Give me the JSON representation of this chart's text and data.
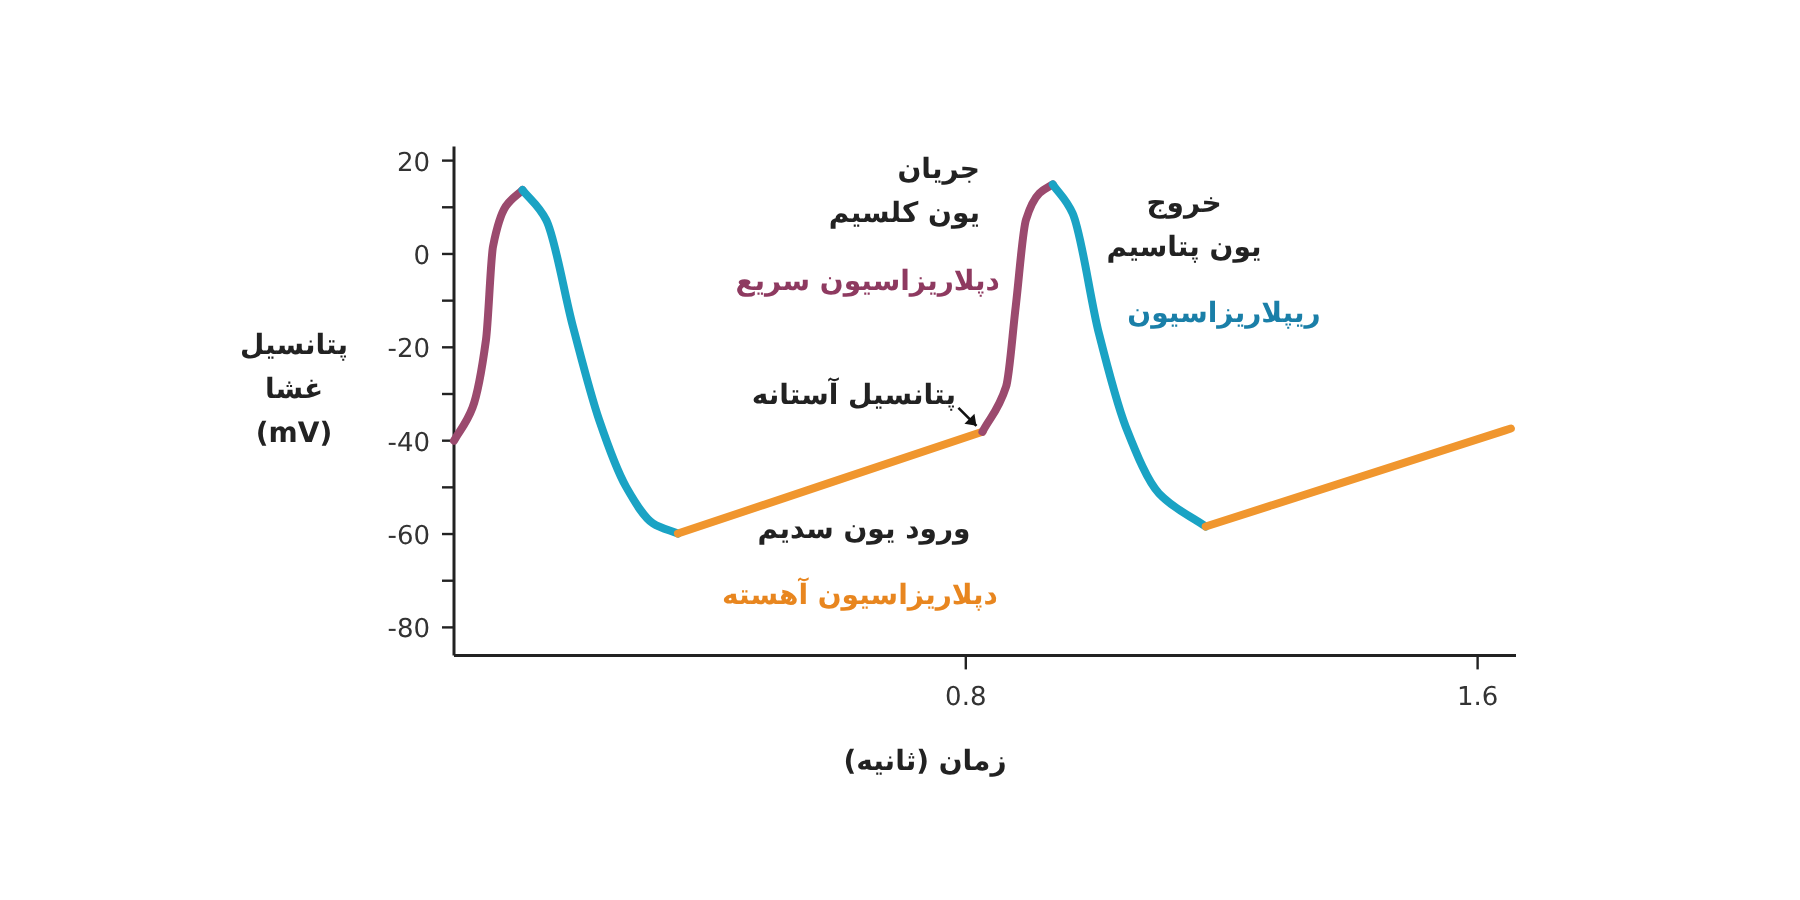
{
  "chart_data": {
    "type": "line",
    "xlabel": "زمان (ثانیه)",
    "ylabel": "پتانسیل\nغشا\n(mV)",
    "xlim": [
      0,
      1.66
    ],
    "ylim": [
      -86,
      23
    ],
    "xticks": [
      0.8,
      1.6
    ],
    "yticks": [
      20,
      {
        "value": 10,
        "label": null
      },
      0,
      {
        "value": -10,
        "label": null
      },
      -20,
      {
        "value": -30,
        "label": null
      },
      -40,
      {
        "value": -50,
        "label": null
      },
      -60,
      {
        "value": -70,
        "label": null
      },
      -80
    ],
    "grid": false,
    "marker": "none",
    "line_style": "solid",
    "series": [
      {
        "color": "#9b4a6e",
        "x": [
          0,
          0.029,
          0.05,
          0.061,
          0.081,
          0.107
        ],
        "values": [
          -40,
          -32.9,
          -18.4,
          1.6,
          10.2,
          13.7
        ]
      },
      {
        "color": "#1aa3c4",
        "x": [
          0.107,
          0.144,
          0.186,
          0.227,
          0.269,
          0.311,
          0.35
        ],
        "values": [
          13.7,
          7.3,
          -15.6,
          -35.6,
          -49.9,
          -57.7,
          -59.9
        ]
      },
      {
        "color": "#f0962e",
        "x": [
          0.35,
          0.826
        ],
        "values": [
          -59.9,
          -38.1
        ]
      },
      {
        "color": "#9b4a6e",
        "x": [
          0.826,
          0.863,
          0.878,
          0.894,
          0.915,
          0.936
        ],
        "values": [
          -38.1,
          -28.4,
          -11.3,
          7.3,
          13,
          14.9
        ]
      },
      {
        "color": "#1aa3c4",
        "x": [
          0.936,
          0.967,
          1.008,
          1.05,
          1.102,
          1.175
        ],
        "values": [
          14.9,
          8.7,
          -17,
          -37,
          -51.3,
          -58.4
        ]
      },
      {
        "color": "#f0962e",
        "x": [
          1.175,
          1.652
        ],
        "values": [
          -58.4,
          -37.4
        ]
      }
    ],
    "annotations": [
      "جریان\nیون کلسیم",
      "دپلاریزاسیون سریع",
      {
        "text": "پتانسیل آستانه",
        "x": 0.826,
        "y": -38.1
      },
      "ورود یون سدیم",
      "دپلاریزاسیون آهسته",
      "خروج\nیون پتاسیم",
      "ریپلاریزاسیون"
    ]
  }
}
